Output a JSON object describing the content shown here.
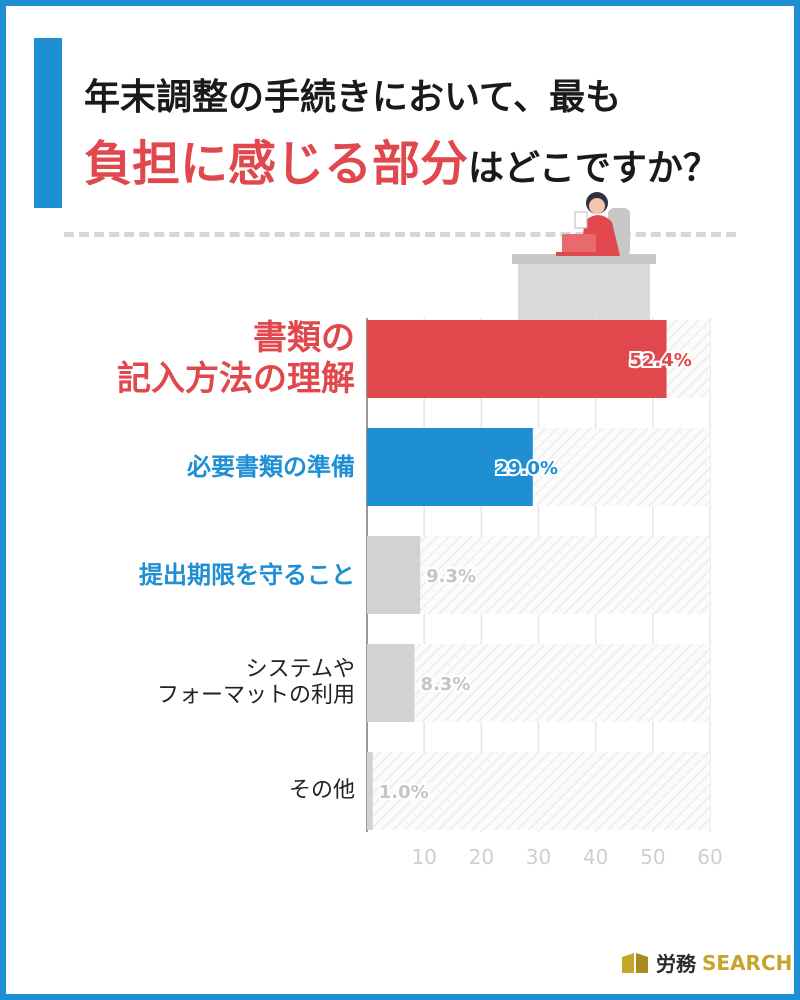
{
  "title": {
    "line1": "年末調整の手続きにおいて、最も",
    "line2_highlight": "負担に感じる部分",
    "line2_rest": "はどこですか？"
  },
  "logo": {
    "jp": "労務",
    "en": "SEARCH"
  },
  "colors": {
    "accent_blue": "#1e8fd3",
    "accent_red": "#e0484d",
    "bar_gray": "#d2d2d2"
  },
  "chart_data": {
    "type": "bar",
    "orientation": "horizontal",
    "categories": [
      "書類の\n記入方法の理解",
      "必要書類の準備",
      "提出期限を守ること",
      "システムや\nフォーマットの利用",
      "その他"
    ],
    "values": [
      52.4,
      29.0,
      9.3,
      8.3,
      1.0
    ],
    "value_labels": [
      "52.4%",
      "29.0%",
      "9.3%",
      "8.3%",
      "1.0%"
    ],
    "bar_colors": [
      "#e0484d",
      "#1e8fd3",
      "#d2d2d2",
      "#d2d2d2",
      "#d2d2d2"
    ],
    "label_colors": [
      "#e0484d",
      "#1e8fd3",
      "#1e8fd3",
      "#222222",
      "#222222"
    ],
    "x_ticks": [
      10,
      20,
      30,
      40,
      50,
      60
    ],
    "xlim": [
      0,
      60
    ],
    "grid": true,
    "title": "",
    "xlabel": "",
    "ylabel": ""
  }
}
